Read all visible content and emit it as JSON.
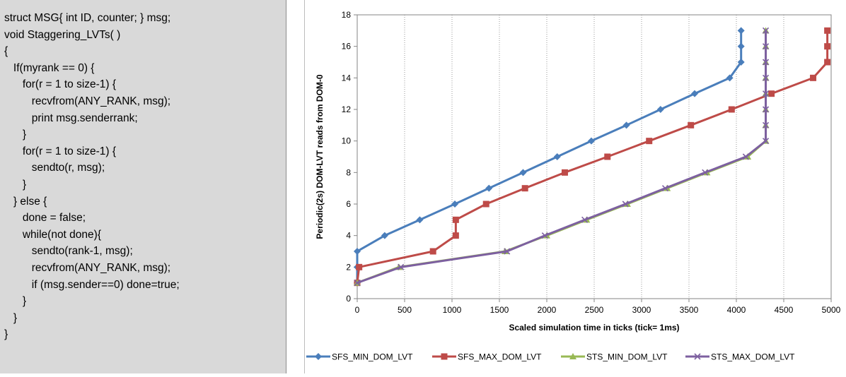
{
  "code": {
    "lines": [
      "struct MSG{ int ID, counter; } msg;",
      "void Staggering_LVTs( )",
      "{",
      "   If(myrank == 0) {",
      "      for(r = 1 to size-1) {",
      "         recvfrom(ANY_RANK, msg);",
      "         print msg.senderrank;",
      "      }",
      "      for(r = 1 to size-1) {",
      "         sendto(r, msg);",
      "      }",
      "   } else {",
      "      done = false;",
      "      while(not done){",
      "         sendto(rank-1, msg);",
      "         recvfrom(ANY_RANK, msg);",
      "         if (msg.sender==0) done=true;",
      "      }",
      "   }",
      "}"
    ]
  },
  "chart_data": {
    "type": "line",
    "title": "",
    "xlabel": "Scaled simulation time in ticks (tick= 1ms)",
    "ylabel": "Periodic(2s) DOM-LVT reads from DOM-0",
    "xlim": [
      0,
      5000
    ],
    "ylim": [
      0,
      18
    ],
    "xticks": [
      0,
      500,
      1000,
      1500,
      2000,
      2500,
      3000,
      3500,
      4000,
      4500,
      5000
    ],
    "yticks": [
      0,
      2,
      4,
      6,
      8,
      10,
      12,
      14,
      16,
      18
    ],
    "grid": "vertical dotted",
    "legend_position": "bottom",
    "series": [
      {
        "name": "SFS_MIN_DOM_LVT",
        "color": "#4a7ebb",
        "marker": "diamond",
        "points": [
          [
            0,
            1
          ],
          [
            0,
            2
          ],
          [
            0,
            3
          ],
          [
            290,
            4
          ],
          [
            660,
            5
          ],
          [
            1030,
            6
          ],
          [
            1390,
            7
          ],
          [
            1750,
            8
          ],
          [
            2110,
            9
          ],
          [
            2470,
            10
          ],
          [
            2840,
            11
          ],
          [
            3200,
            12
          ],
          [
            3560,
            13
          ],
          [
            3930,
            14
          ],
          [
            4050,
            15
          ],
          [
            4050,
            16
          ],
          [
            4050,
            17
          ]
        ]
      },
      {
        "name": "SFS_MAX_DOM_LVT",
        "color": "#be4b48",
        "marker": "square",
        "points": [
          [
            0,
            1
          ],
          [
            20,
            2
          ],
          [
            800,
            3
          ],
          [
            1040,
            4
          ],
          [
            1040,
            5
          ],
          [
            1360,
            6
          ],
          [
            1770,
            7
          ],
          [
            2190,
            8
          ],
          [
            2640,
            9
          ],
          [
            3080,
            10
          ],
          [
            3520,
            11
          ],
          [
            3950,
            12
          ],
          [
            4370,
            13
          ],
          [
            4810,
            14
          ],
          [
            4960,
            15
          ],
          [
            4960,
            16
          ],
          [
            4960,
            17
          ]
        ]
      },
      {
        "name": "STS_MIN_DOM_LVT",
        "color": "#98b954",
        "marker": "triangle",
        "points": [
          [
            0,
            1
          ],
          [
            440,
            2
          ],
          [
            1560,
            3
          ],
          [
            2000,
            4
          ],
          [
            2420,
            5
          ],
          [
            2850,
            6
          ],
          [
            3270,
            7
          ],
          [
            3690,
            8
          ],
          [
            4120,
            9
          ],
          [
            4310,
            10
          ],
          [
            4310,
            11
          ],
          [
            4310,
            12
          ],
          [
            4310,
            13
          ],
          [
            4310,
            14
          ],
          [
            4310,
            15
          ],
          [
            4310,
            16
          ],
          [
            4310,
            17
          ]
        ]
      },
      {
        "name": "STS_MAX_DOM_LVT",
        "color": "#7d60a0",
        "marker": "x",
        "points": [
          [
            0,
            1
          ],
          [
            460,
            2
          ],
          [
            1580,
            3
          ],
          [
            1980,
            4
          ],
          [
            2400,
            5
          ],
          [
            2830,
            6
          ],
          [
            3250,
            7
          ],
          [
            3670,
            8
          ],
          [
            4100,
            9
          ],
          [
            4310,
            10
          ],
          [
            4310,
            11
          ],
          [
            4310,
            12
          ],
          [
            4310,
            13
          ],
          [
            4310,
            14
          ],
          [
            4310,
            15
          ],
          [
            4310,
            16
          ],
          [
            4310,
            17
          ]
        ]
      }
    ]
  }
}
